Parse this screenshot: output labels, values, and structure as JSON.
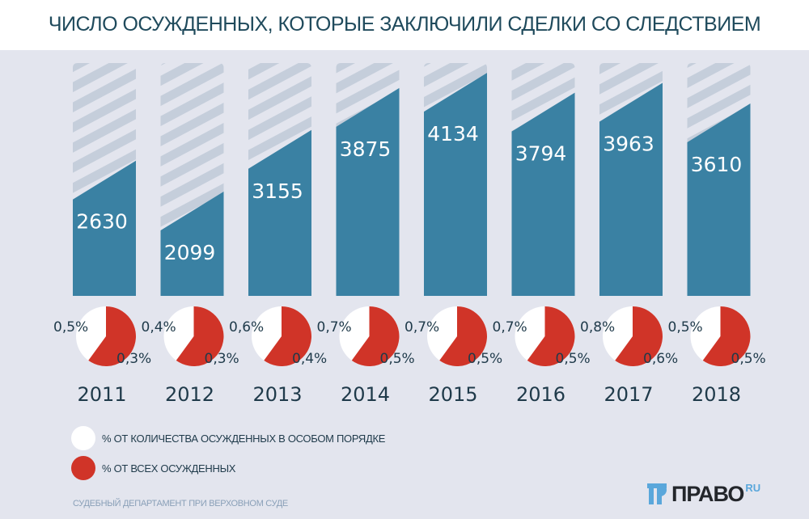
{
  "chart_data": {
    "type": "bar",
    "title": "ЧИСЛО ОСУЖДЕННЫХ, КОТОРЫЕ ЗАКЛЮЧИЛИ СДЕЛКИ СО СЛЕДСТВИЕМ",
    "categories": [
      "2011",
      "2012",
      "2013",
      "2014",
      "2015",
      "2016",
      "2017",
      "2018"
    ],
    "values": [
      2630,
      2099,
      3155,
      3875,
      4134,
      3794,
      3963,
      3610
    ],
    "pie_series": [
      {
        "name": "% ОТ КОЛИЧЕСТВА ОСУЖДЕННЫХ В ОСОБОМ ПОРЯДКЕ",
        "color": "#ffffff",
        "labels": [
          "0,5%",
          "0,4%",
          "0,6%",
          "0,7%",
          "0,7%",
          "0,7%",
          "0,8%",
          "0,5%"
        ]
      },
      {
        "name": "% ОТ ВСЕХ ОСУЖДЕННЫХ",
        "color": "#d03428",
        "labels": [
          "0,3%",
          "0,3%",
          "0,4%",
          "0,5%",
          "0,5%",
          "0,5%",
          "0,6%",
          "0,5%"
        ]
      }
    ],
    "bar_color": "#3a81a3",
    "hatch_color": "#c5cedb",
    "grid": false,
    "legend": "bottom-left"
  },
  "source": "СУДЕБНЫЙ ДЕПАРТАМЕНТ ПРИ ВЕРХОВНОМ СУДЕ",
  "logo": {
    "text": "ПРАВО",
    "suffix": "RU"
  }
}
